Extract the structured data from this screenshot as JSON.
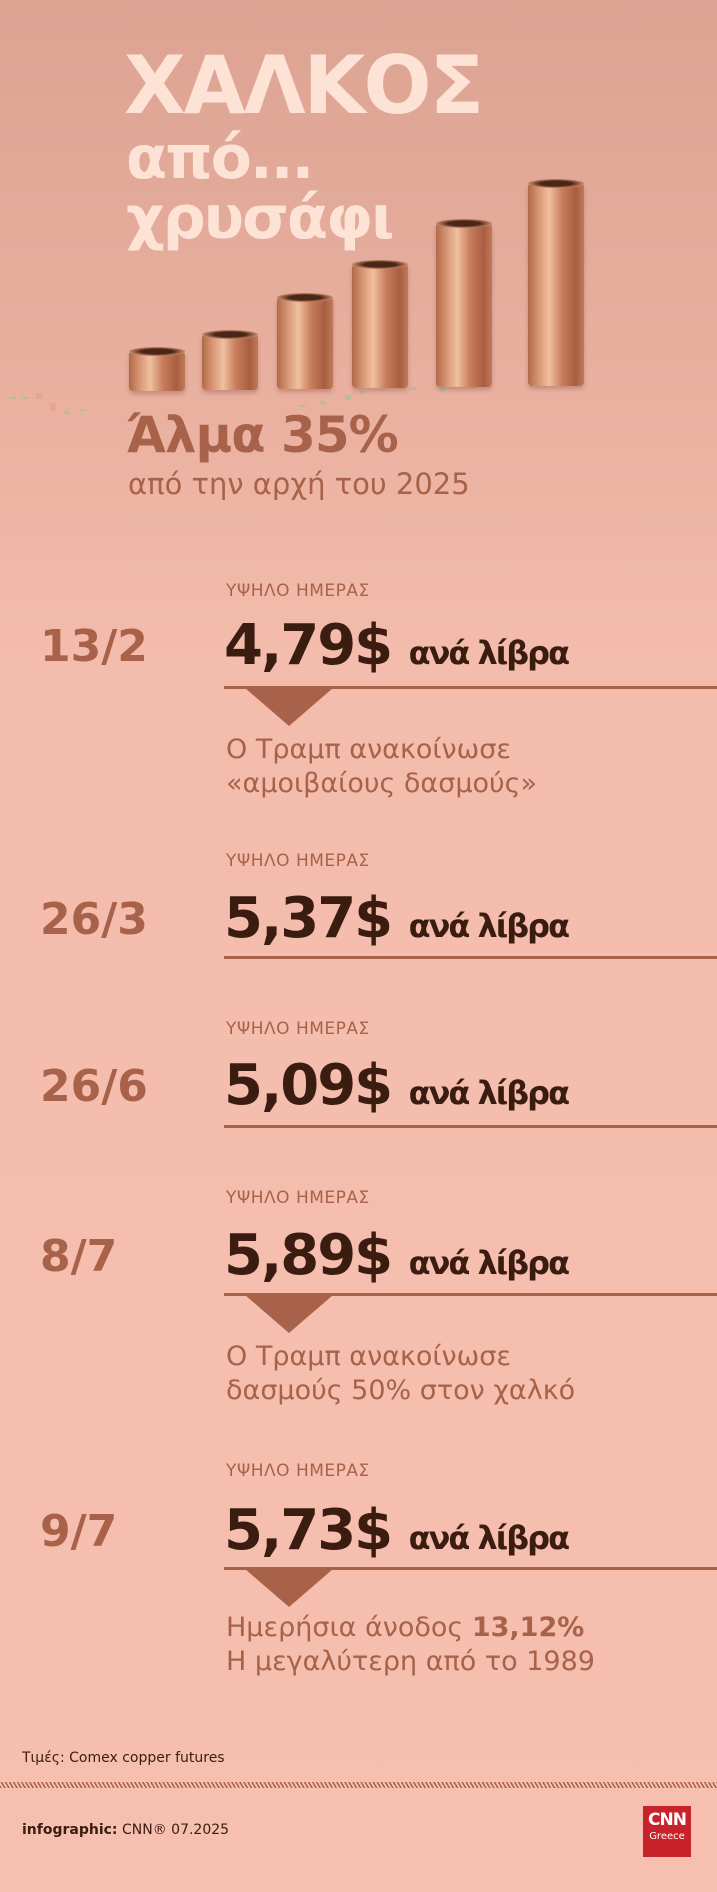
{
  "header": {
    "title": "ΧΑΛΚΟΣ",
    "subtitle_line1": "από...",
    "subtitle_line2": "χρυσάφι",
    "headline": "Άλμα 35%",
    "headline_sub": "από την αρχή του 2025"
  },
  "colors": {
    "accent": "#a8624a",
    "dark": "#3a1d10",
    "title": "#fde2d6",
    "background": "#f6bfaf",
    "logo": "#c8222a"
  },
  "entries": [
    {
      "date": "13/2",
      "label": "ΥΨΗΛΟ ΗΜΕΡΑΣ",
      "price": "4,79$",
      "unit": "ανά λίβρα",
      "note_line1": "Ο Τραμπ ανακοίνωσε",
      "note_line2": "«αμοιβαίους δασμούς»"
    },
    {
      "date": "26/3",
      "label": "ΥΨΗΛΟ ΗΜΕΡΑΣ",
      "price": "5,37$",
      "unit": "ανά λίβρα"
    },
    {
      "date": "26/6",
      "label": "ΥΨΗΛΟ ΗΜΕΡΑΣ",
      "price": "5,09$",
      "unit": "ανά λίβρα"
    },
    {
      "date": "8/7",
      "label": "ΥΨΗΛΟ ΗΜΕΡΑΣ",
      "price": "5,89$",
      "unit": "ανά λίβρα",
      "note_line1": "Ο Τραμπ ανακοίνωσε",
      "note_line2": "δασμούς 50% στον χαλκό"
    },
    {
      "date": "9/7",
      "label": "ΥΨΗΛΟ ΗΜΕΡΑΣ",
      "price": "5,73$",
      "unit": "ανά λίβρα",
      "note_line1_text": "Ημερήσια άνοδος ",
      "note_line1_bold": "13,12%",
      "note_line2": "Η μεγαλύτερη από το 1989"
    }
  ],
  "footer": {
    "source": "Τιμές: Comex copper futures",
    "credit_bold": "infographic:",
    "credit_text": " CNN® 07.2025",
    "logo_main": "CNN",
    "logo_sub": "Greece"
  }
}
